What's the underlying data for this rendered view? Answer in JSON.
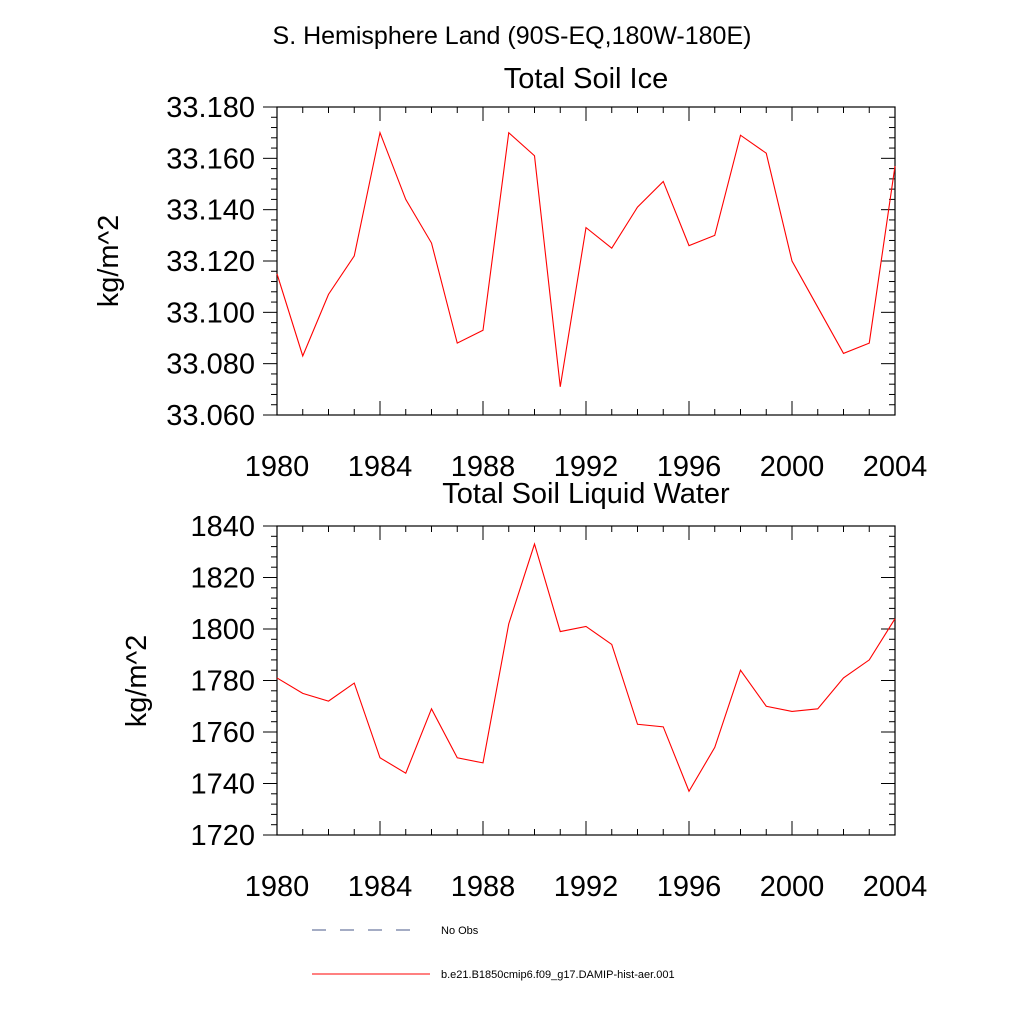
{
  "page_title": "S. Hemisphere Land (90S-EQ,180W-180E)",
  "legend": {
    "items": [
      {
        "label": "No Obs",
        "color": "#4a5a8a",
        "style": "dashed"
      },
      {
        "label": "b.e21.B1850cmip6.f09_g17.DAMIP-hist-aer.001",
        "color": "#ff0000",
        "style": "solid"
      }
    ]
  },
  "chart_data": [
    {
      "type": "line",
      "title": "Total Soil Ice",
      "ylabel": "kg/m^2",
      "xlabel": "",
      "xlim": [
        1980,
        2004
      ],
      "ylim": [
        33.06,
        33.18
      ],
      "x_ticks": [
        "1980",
        "1984",
        "1988",
        "1992",
        "1996",
        "2000",
        "2004"
      ],
      "y_ticks": [
        "33.060",
        "33.080",
        "33.100",
        "33.120",
        "33.140",
        "33.160",
        "33.180"
      ],
      "grid": false,
      "series": [
        {
          "color": "#ff0000",
          "x": [
            1980,
            1981,
            1982,
            1983,
            1984,
            1985,
            1986,
            1987,
            1988,
            1989,
            1990,
            1991,
            1992,
            1993,
            1994,
            1995,
            1996,
            1997,
            1998,
            1999,
            2000,
            2001,
            2002,
            2003,
            2004
          ],
          "values": [
            33.115,
            33.083,
            33.107,
            33.122,
            33.17,
            33.144,
            33.127,
            33.088,
            33.093,
            33.17,
            33.161,
            33.071,
            33.133,
            33.125,
            33.141,
            33.151,
            33.126,
            33.13,
            33.169,
            33.162,
            33.12,
            33.102,
            33.084,
            33.088,
            33.157
          ]
        }
      ]
    },
    {
      "type": "line",
      "title": "Total Soil Liquid Water",
      "ylabel": "kg/m^2",
      "xlabel": "",
      "xlim": [
        1980,
        2004
      ],
      "ylim": [
        1720,
        1840
      ],
      "x_ticks": [
        "1980",
        "1984",
        "1988",
        "1992",
        "1996",
        "2000",
        "2004"
      ],
      "y_ticks": [
        "1720",
        "1740",
        "1760",
        "1780",
        "1800",
        "1820",
        "1840"
      ],
      "grid": false,
      "series": [
        {
          "color": "#ff0000",
          "x": [
            1980,
            1981,
            1982,
            1983,
            1984,
            1985,
            1986,
            1987,
            1988,
            1989,
            1990,
            1991,
            1992,
            1993,
            1994,
            1995,
            1996,
            1997,
            1998,
            1999,
            2000,
            2001,
            2002,
            2003,
            2004
          ],
          "values": [
            1781,
            1775,
            1772,
            1779,
            1750,
            1744,
            1769,
            1750,
            1748,
            1802,
            1833,
            1799,
            1801,
            1794,
            1763,
            1762,
            1737,
            1754,
            1784,
            1770,
            1768,
            1769,
            1781,
            1788,
            1804
          ]
        }
      ]
    }
  ]
}
